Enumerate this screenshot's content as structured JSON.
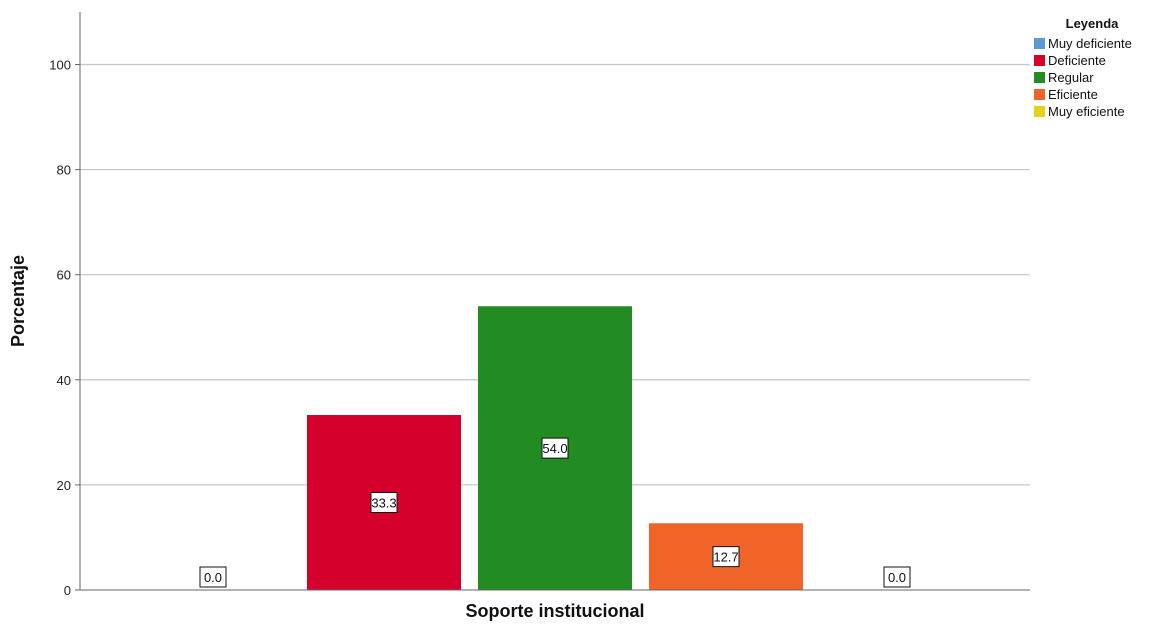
{
  "chart_data": {
    "type": "bar",
    "xlabel": "Soporte institucional",
    "ylabel": "Porcentaje",
    "ylim": [
      0,
      110
    ],
    "yticks": [
      0,
      20,
      40,
      60,
      80,
      100
    ],
    "grid": "horizontal",
    "legend_placement": "top-right",
    "legend_title": "Leyenda",
    "series": [
      {
        "name": "Muy deficiente",
        "value": 0.0,
        "label": "0.0",
        "color": "#5b9bd5"
      },
      {
        "name": "Deficiente",
        "value": 33.3,
        "label": "33.3",
        "color": "#d6002d"
      },
      {
        "name": "Regular",
        "value": 54.0,
        "label": "54.0",
        "color": "#228b22"
      },
      {
        "name": "Eficiente",
        "value": 12.7,
        "label": "12.7",
        "color": "#f0642a"
      },
      {
        "name": "Muy eficiente",
        "value": 0.0,
        "label": "0.0",
        "color": "#e6d21c"
      }
    ]
  }
}
